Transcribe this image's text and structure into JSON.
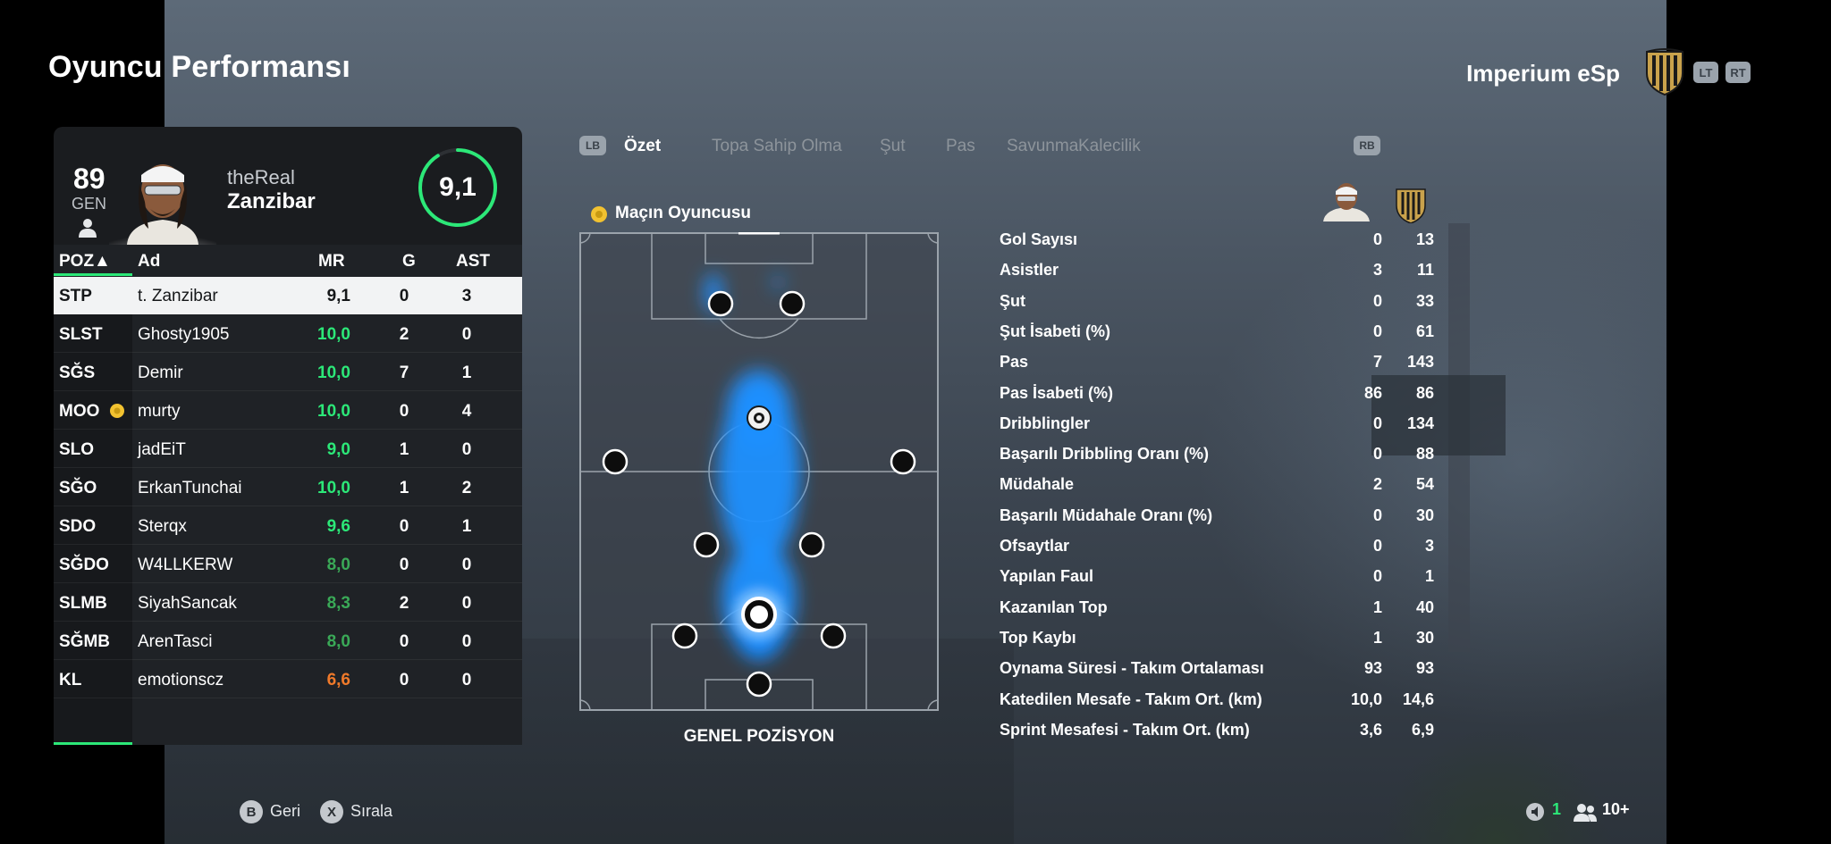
{
  "header": {
    "title": "Oyuncu Performansı",
    "team_name": "Imperium eSp",
    "lt": "LT",
    "rt": "RT"
  },
  "player": {
    "ovr": "89",
    "ovr_label": "GEN",
    "first_name": "theReal",
    "last_name": "Zanzibar",
    "rating": "9,1",
    "rating_fraction": 0.91
  },
  "squad": {
    "headers": {
      "poz": "POZ▲",
      "ad": "Ad",
      "mr": "MR",
      "g": "G",
      "ast": "AST"
    },
    "rows": [
      {
        "poz": "STP",
        "ad": "t. Zanzibar",
        "mr": "9,1",
        "g": "0",
        "ast": "3",
        "color": "#151719"
      },
      {
        "poz": "SLST",
        "ad": "Ghosty1905",
        "mr": "10,0",
        "g": "2",
        "ast": "0",
        "color": "#2ce878"
      },
      {
        "poz": "SĞS",
        "ad": "Demir",
        "mr": "10,0",
        "g": "7",
        "ast": "1",
        "color": "#2ce878"
      },
      {
        "poz": "MOO",
        "ad": "murty",
        "mr": "10,0",
        "g": "0",
        "ast": "4",
        "color": "#2ce878"
      },
      {
        "poz": "SLO",
        "ad": "jadEiT",
        "mr": "9,0",
        "g": "1",
        "ast": "0",
        "color": "#2ce878"
      },
      {
        "poz": "SĞO",
        "ad": "ErkanTunchai",
        "mr": "10,0",
        "g": "1",
        "ast": "2",
        "color": "#2ce878"
      },
      {
        "poz": "SDO",
        "ad": "Sterqx",
        "mr": "9,6",
        "g": "0",
        "ast": "1",
        "color": "#2ce878"
      },
      {
        "poz": "SĞDO",
        "ad": "W4LLKERW",
        "mr": "8,0",
        "g": "0",
        "ast": "0",
        "color": "#3aa957"
      },
      {
        "poz": "SLMB",
        "ad": "SiyahSancak",
        "mr": "8,3",
        "g": "2",
        "ast": "0",
        "color": "#3aa957"
      },
      {
        "poz": "SĞMB",
        "ad": "ArenTasci",
        "mr": "8,0",
        "g": "0",
        "ast": "0",
        "color": "#3aa957"
      },
      {
        "poz": "KL",
        "ad": "emotionscz",
        "mr": "6,6",
        "g": "0",
        "ast": "0",
        "color": "#f07a2a"
      }
    ]
  },
  "tabs": {
    "lb": "LB",
    "rb": "RB",
    "items": [
      "Özet",
      "Topa Sahip Olma",
      "Şut",
      "Pas",
      "Savunma",
      "Kalecilik"
    ]
  },
  "pitch": {
    "motm_label": "Maçın Oyuncusu",
    "caption": "GENEL POZİSYON"
  },
  "stats": [
    {
      "label": "Gol Sayısı",
      "player": "0",
      "team": "13"
    },
    {
      "label": "Asistler",
      "player": "3",
      "team": "11"
    },
    {
      "label": "Şut",
      "player": "0",
      "team": "33"
    },
    {
      "label": "Şut İsabeti (%)",
      "player": "0",
      "team": "61"
    },
    {
      "label": "Pas",
      "player": "7",
      "team": "143"
    },
    {
      "label": "Pas İsabeti (%)",
      "player": "86",
      "team": "86"
    },
    {
      "label": "Dribblingler",
      "player": "0",
      "team": "134"
    },
    {
      "label": "Başarılı Dribbling Oranı (%)",
      "player": "0",
      "team": "88"
    },
    {
      "label": "Müdahale",
      "player": "2",
      "team": "54"
    },
    {
      "label": "Başarılı Müdahale Oranı (%)",
      "player": "0",
      "team": "30"
    },
    {
      "label": "Ofsaytlar",
      "player": "0",
      "team": "3"
    },
    {
      "label": "Yapılan Faul",
      "player": "0",
      "team": "1"
    },
    {
      "label": "Kazanılan Top",
      "player": "1",
      "team": "40"
    },
    {
      "label": "Top Kaybı",
      "player": "1",
      "team": "30"
    },
    {
      "label": "Oynama Süresi - Takım Ortalaması",
      "player": "93",
      "team": "93"
    },
    {
      "label": "Katedilen Mesafe - Takım Ort. (km)",
      "player": "10,0",
      "team": "14,6"
    },
    {
      "label": "Sprint Mesafesi - Takım Ort. (km)",
      "player": "3,6",
      "team": "6,9"
    }
  ],
  "footer": {
    "b_key": "B",
    "back": "Geri",
    "x_key": "X",
    "sort": "Sırala",
    "count": "1",
    "players": "10+"
  },
  "colors": {
    "accent_green": "#2ce878",
    "heat_blue": "#1e90ff",
    "orange": "#f07a2a"
  }
}
